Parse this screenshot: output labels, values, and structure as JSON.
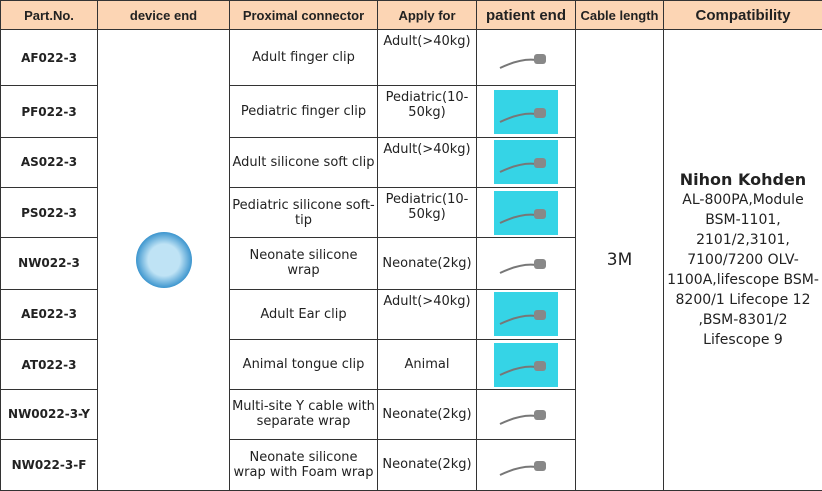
{
  "headers": [
    "Part.No.",
    "device end",
    "Proximal connector",
    "Apply for",
    "patient end",
    "Cable length",
    "Compatibility"
  ],
  "rows": [
    {
      "part": "AF022-3",
      "connector": "Adult finger clip",
      "apply": "Adult(>40kg)",
      "thumb": "white"
    },
    {
      "part": "PF022-3",
      "connector": "Pediatric finger clip",
      "apply": "Pediatric(10-50kg)",
      "thumb": "cyan"
    },
    {
      "part": "AS022-3",
      "connector": "Adult silicone soft clip",
      "apply": "Adult(>40kg)",
      "thumb": "cyan"
    },
    {
      "part": "PS022-3",
      "connector": "Pediatric silicone soft-tip",
      "apply": "Pediatric(10-50kg)",
      "thumb": "cyan"
    },
    {
      "part": "NW022-3",
      "connector": "Neonate silicone wrap",
      "apply": "Neonate(2kg)",
      "thumb": "white"
    },
    {
      "part": "AE022-3",
      "connector": "Adult Ear clip",
      "apply": "Adult(>40kg)",
      "thumb": "cyan"
    },
    {
      "part": "AT022-3",
      "connector": "Animal tongue clip",
      "apply": "Animal",
      "thumb": "cyan"
    },
    {
      "part": "NW0022-3-Y",
      "connector": "Multi-site Y cable with separate wrap",
      "apply": "Neonate(2kg)",
      "thumb": "white"
    },
    {
      "part": "NW022-3-F",
      "connector": "Neonate silicone wrap with Foam wrap",
      "apply": "Neonate(2kg)",
      "thumb": "white"
    }
  ],
  "cable_length": "3M",
  "compatibility": {
    "brand": "Nihon Kohden",
    "models": "AL-800PA,Module BSM-1101, 2101/2,3101, 7100/7200  OLV-1100A,lifescope BSM-8200/1 Lifecope 12 ,BSM-8301/2 Lifescope 9"
  }
}
